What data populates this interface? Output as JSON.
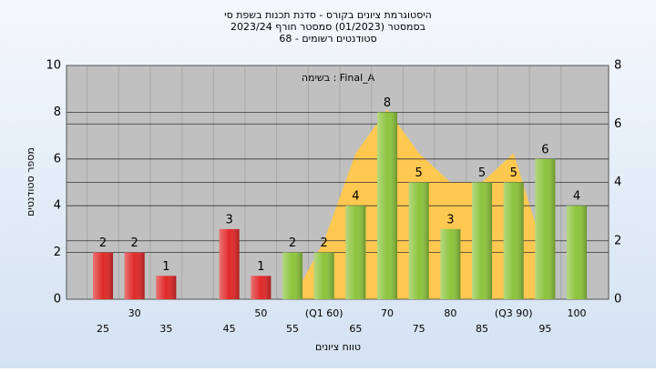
{
  "chart_data": {
    "type": "bar",
    "title": "היסטוגרמת ציונים בקורס - סדנת תכנות בשפת סי",
    "subtitle": "בסמסטר  (01/2023)  סמסטר חורף 2023/24",
    "subtitle2": "68 - סטודנטים רשומים",
    "annotation": "בשימה : Final_A",
    "xlabel": "טווח ציונים",
    "ylabel": "מספר סטודנטים",
    "categories": [
      "25",
      "30",
      "35",
      null,
      "45",
      "50",
      "55",
      "(Q1 60)",
      "65",
      "70",
      "75",
      "80",
      "85",
      "(Q3 90)",
      "95",
      "100"
    ],
    "values": [
      2,
      2,
      1,
      0,
      3,
      1,
      2,
      2,
      4,
      8,
      5,
      3,
      5,
      5,
      6,
      4
    ],
    "bar_colors": [
      "#e02828",
      "#e02828",
      "#e02828",
      "#e02828",
      "#e02828",
      "#e02828",
      "#8cc43c",
      "#8cc43c",
      "#8cc43c",
      "#8cc43c",
      "#8cc43c",
      "#8cc43c",
      "#8cc43c",
      "#8cc43c",
      "#8cc43c",
      "#8cc43c"
    ],
    "area": {
      "axis": "y2",
      "color": "#ffc850",
      "values": [
        null,
        null,
        null,
        null,
        null,
        null,
        0,
        2,
        5,
        6.5,
        5,
        4,
        4,
        5,
        1.5,
        null
      ]
    },
    "ylim": [
      0,
      10
    ],
    "yticks": [
      0,
      2,
      4,
      6,
      8,
      10
    ],
    "y2lim": [
      0,
      8
    ],
    "y2ticks": [
      0,
      2,
      4,
      6,
      8
    ],
    "grid": true
  }
}
